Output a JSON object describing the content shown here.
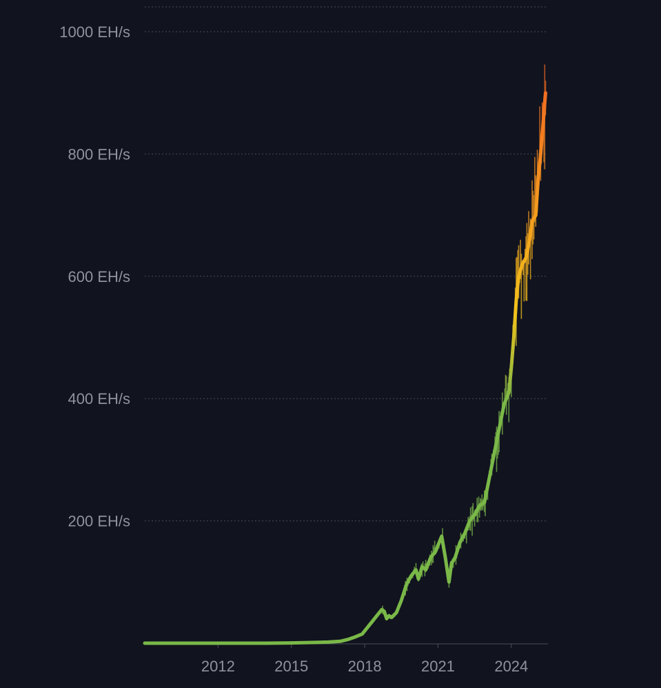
{
  "colors": {
    "background": "#11131f",
    "grid": "#4a4e5a",
    "tick_text": "#8f939c",
    "low": "#7ab848",
    "mid": "#f2c21b",
    "high": "#f47f20",
    "peak": "#ea4a20"
  },
  "chart_data": {
    "type": "line",
    "title": "",
    "xlabel": "",
    "ylabel": "",
    "grid": true,
    "legend": "none",
    "xlim": [
      2009.0,
      2025.5
    ],
    "ylim": [
      0,
      1000
    ],
    "y_ticks": [
      {
        "value": 200,
        "label": "200 EH/s"
      },
      {
        "value": 400,
        "label": "400 EH/s"
      },
      {
        "value": 600,
        "label": "600 EH/s"
      },
      {
        "value": 800,
        "label": "800 EH/s"
      },
      {
        "value": 1000,
        "label": "1000 EH/s"
      }
    ],
    "x_ticks": [
      {
        "value": 2012,
        "label": "2012"
      },
      {
        "value": 2015,
        "label": "2015"
      },
      {
        "value": 2018,
        "label": "2018"
      },
      {
        "value": 2021,
        "label": "2021"
      },
      {
        "value": 2024,
        "label": "2024"
      }
    ],
    "series": [
      {
        "x": [
          2009.0,
          2010.0,
          2011.0,
          2012.0,
          2013.0,
          2014.0,
          2015.0,
          2016.0,
          2016.5,
          2017.0,
          2017.3,
          2017.6,
          2017.9,
          2018.1,
          2018.3,
          2018.5,
          2018.7,
          2018.8,
          2018.9,
          2019.0,
          2019.1,
          2019.3,
          2019.5,
          2019.7,
          2019.9,
          2020.1,
          2020.2,
          2020.35,
          2020.5,
          2020.7,
          2020.9,
          2021.0,
          2021.15,
          2021.3,
          2021.45,
          2021.55,
          2021.7,
          2021.9,
          2022.1,
          2022.3,
          2022.5,
          2022.7,
          2022.9,
          2023.1,
          2023.3,
          2023.5,
          2023.7,
          2023.9,
          2024.0,
          2024.1,
          2024.2,
          2024.3,
          2024.45,
          2024.6,
          2024.75,
          2024.85,
          2025.0,
          2025.1,
          2025.2,
          2025.3,
          2025.4
        ],
        "values": [
          0,
          0,
          0,
          0,
          0,
          0,
          0.4,
          1.2,
          1.8,
          3,
          6,
          10,
          15,
          25,
          35,
          45,
          55,
          52,
          40,
          45,
          42,
          50,
          70,
          95,
          110,
          120,
          105,
          125,
          120,
          140,
          150,
          160,
          175,
          140,
          100,
          130,
          140,
          165,
          180,
          200,
          210,
          225,
          230,
          270,
          310,
          350,
          390,
          410,
          450,
          500,
          560,
          600,
          620,
          630,
          660,
          690,
          700,
          760,
          800,
          850,
          900
        ]
      }
    ]
  }
}
